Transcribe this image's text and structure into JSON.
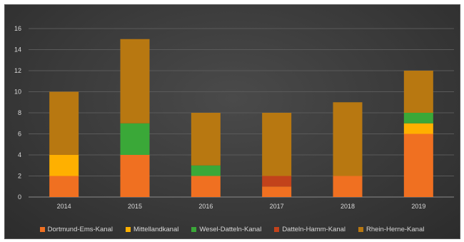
{
  "chart_data": {
    "type": "bar",
    "stacked": true,
    "categories": [
      "2014",
      "2015",
      "2016",
      "2017",
      "2018",
      "2019"
    ],
    "ylim": [
      0,
      16
    ],
    "yticks": [
      0,
      2,
      4,
      6,
      8,
      10,
      12,
      14,
      16
    ],
    "grid": true,
    "legend_position": "bottom",
    "series": [
      {
        "name": "Dortmund-Ems-Kanal",
        "color": "#f07021",
        "values": [
          2,
          4,
          2,
          1,
          2,
          6
        ]
      },
      {
        "name": "Mittellandkanal",
        "color": "#ffb000",
        "values": [
          2,
          0,
          0,
          0,
          0,
          1
        ]
      },
      {
        "name": "Wesel-Datteln-Kanal",
        "color": "#3aa838",
        "values": [
          0,
          3,
          1,
          0,
          0,
          1
        ]
      },
      {
        "name": "Datteln-Hamm-Kanal",
        "color": "#c2421b",
        "values": [
          0,
          0,
          0,
          1,
          0,
          0
        ]
      },
      {
        "name": "Rhein-Herne-Kanal",
        "color": "#b87811",
        "values": [
          6,
          8,
          5,
          6,
          7,
          4
        ]
      }
    ]
  }
}
